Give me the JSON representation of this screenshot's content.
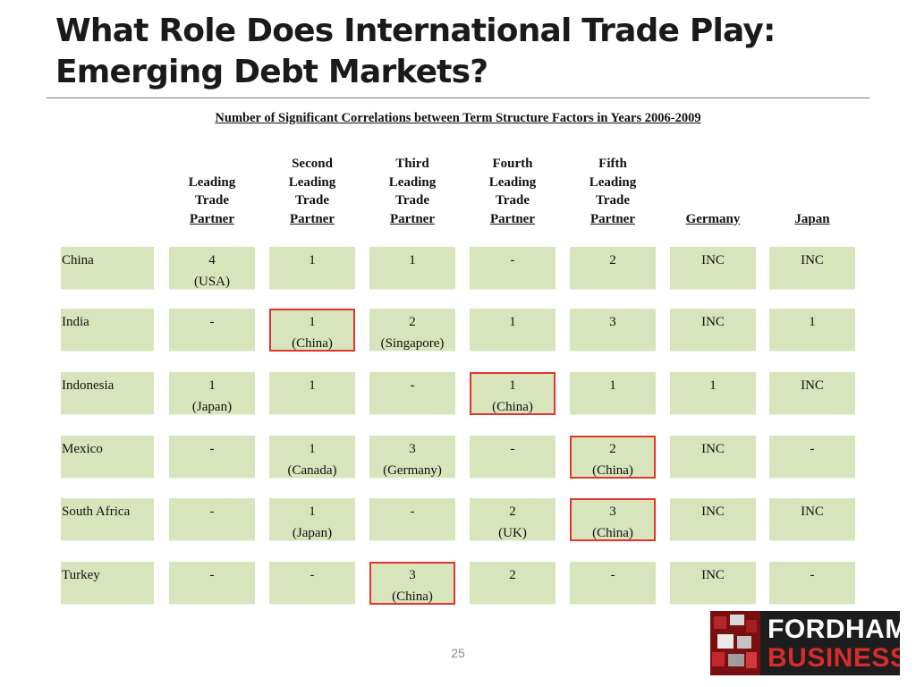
{
  "header": {
    "title_line1": "What Role Does International Trade Play:",
    "title_line2": "Emerging Debt Markets?"
  },
  "table": {
    "caption": "Number of Significant Correlations between Term Structure Factors in Years 2006-2009",
    "columns": [
      {
        "lines": [
          "Leading",
          "Trade"
        ],
        "underlined": "Partner"
      },
      {
        "lines": [
          "Second",
          "Leading",
          "Trade"
        ],
        "underlined": "Partner"
      },
      {
        "lines": [
          "Third",
          "Leading",
          "Trade"
        ],
        "underlined": "Partner"
      },
      {
        "lines": [
          "Fourth",
          "Leading",
          "Trade"
        ],
        "underlined": "Partner"
      },
      {
        "lines": [
          "Fifth",
          "Leading",
          "Trade"
        ],
        "underlined": "Partner"
      },
      {
        "lines": [],
        "underlined": "Germany"
      },
      {
        "lines": [],
        "underlined": "Japan"
      }
    ],
    "rows": [
      {
        "country": "China",
        "cells": [
          {
            "value": "4",
            "partner": "(USA)",
            "highlight": false
          },
          {
            "value": "1",
            "partner": "",
            "highlight": false
          },
          {
            "value": "1",
            "partner": "",
            "highlight": false
          },
          {
            "value": "-",
            "partner": "",
            "highlight": false
          },
          {
            "value": "2",
            "partner": "",
            "highlight": false
          },
          {
            "value": "INC",
            "partner": "",
            "highlight": false
          },
          {
            "value": "INC",
            "partner": "",
            "highlight": false
          }
        ]
      },
      {
        "country": "India",
        "cells": [
          {
            "value": "-",
            "partner": "",
            "highlight": false
          },
          {
            "value": "1",
            "partner": "(China)",
            "highlight": true
          },
          {
            "value": "2",
            "partner": "(Singapore)",
            "highlight": false
          },
          {
            "value": "1",
            "partner": "",
            "highlight": false
          },
          {
            "value": "3",
            "partner": "",
            "highlight": false
          },
          {
            "value": "INC",
            "partner": "",
            "highlight": false
          },
          {
            "value": "1",
            "partner": "",
            "highlight": false
          }
        ]
      },
      {
        "country": "Indonesia",
        "cells": [
          {
            "value": "1",
            "partner": "(Japan)",
            "highlight": false
          },
          {
            "value": "1",
            "partner": "",
            "highlight": false
          },
          {
            "value": "-",
            "partner": "",
            "highlight": false
          },
          {
            "value": "1",
            "partner": "(China)",
            "highlight": true
          },
          {
            "value": "1",
            "partner": "",
            "highlight": false
          },
          {
            "value": "1",
            "partner": "",
            "highlight": false
          },
          {
            "value": "INC",
            "partner": "",
            "highlight": false
          }
        ]
      },
      {
        "country": "Mexico",
        "cells": [
          {
            "value": "-",
            "partner": "",
            "highlight": false
          },
          {
            "value": "1",
            "partner": "(Canada)",
            "highlight": false
          },
          {
            "value": "3",
            "partner": "(Germany)",
            "highlight": false
          },
          {
            "value": "-",
            "partner": "",
            "highlight": false
          },
          {
            "value": "2",
            "partner": "(China)",
            "highlight": true
          },
          {
            "value": "INC",
            "partner": "",
            "highlight": false
          },
          {
            "value": "-",
            "partner": "",
            "highlight": false
          }
        ]
      },
      {
        "country": "South Africa",
        "cells": [
          {
            "value": "-",
            "partner": "",
            "highlight": false
          },
          {
            "value": "1",
            "partner": "(Japan)",
            "highlight": false
          },
          {
            "value": "-",
            "partner": "",
            "highlight": false
          },
          {
            "value": "2",
            "partner": "(UK)",
            "highlight": false
          },
          {
            "value": "3",
            "partner": "(China)",
            "highlight": true
          },
          {
            "value": "INC",
            "partner": "",
            "highlight": false
          },
          {
            "value": "INC",
            "partner": "",
            "highlight": false
          }
        ]
      },
      {
        "country": "Turkey",
        "cells": [
          {
            "value": "-",
            "partner": "",
            "highlight": false
          },
          {
            "value": "-",
            "partner": "",
            "highlight": false
          },
          {
            "value": "3",
            "partner": "(China)",
            "highlight": true
          },
          {
            "value": "2",
            "partner": "",
            "highlight": false
          },
          {
            "value": "-",
            "partner": "",
            "highlight": false
          },
          {
            "value": "INC",
            "partner": "",
            "highlight": false
          },
          {
            "value": "-",
            "partner": "",
            "highlight": false
          }
        ]
      }
    ]
  },
  "colors": {
    "cell_fill": "#d8e4bc",
    "highlight_border": "#e3342f",
    "logo_red": "#d62c2c"
  },
  "footer": {
    "page_number": "25",
    "logo_line1": "FORDHAM",
    "logo_line2": "BUSINESS"
  }
}
